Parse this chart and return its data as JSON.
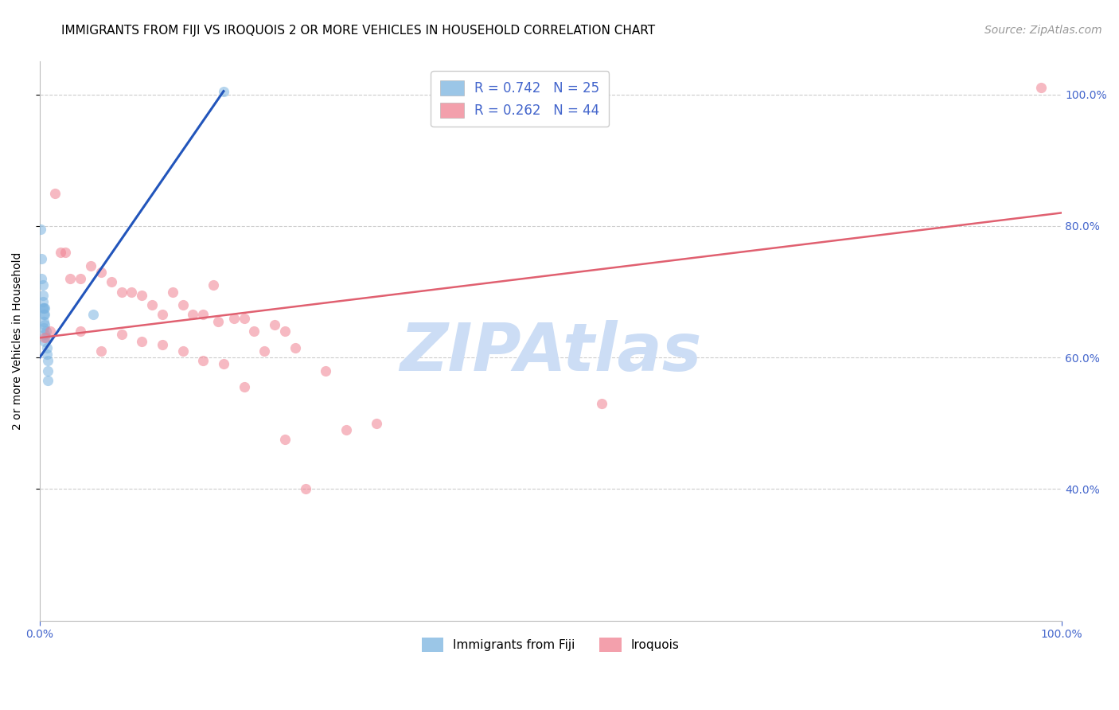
{
  "title": "IMMIGRANTS FROM FIJI VS IROQUOIS 2 OR MORE VEHICLES IN HOUSEHOLD CORRELATION CHART",
  "source": "Source: ZipAtlas.com",
  "ylabel_left": "2 or more Vehicles in Household",
  "x_tick_labels": [
    "0.0%",
    "100.0%"
  ],
  "y_tick_labels_right": [
    "40.0%",
    "60.0%",
    "80.0%",
    "100.0%"
  ],
  "legend_entries": [
    {
      "label": "R = 0.742   N = 25",
      "color": "#a8c8f0"
    },
    {
      "label": "R = 0.262   N = 44",
      "color": "#f0a0b0"
    }
  ],
  "fiji_scatter_x": [
    0.001,
    0.002,
    0.002,
    0.003,
    0.003,
    0.003,
    0.003,
    0.004,
    0.004,
    0.004,
    0.004,
    0.005,
    0.005,
    0.005,
    0.005,
    0.005,
    0.006,
    0.006,
    0.007,
    0.007,
    0.008,
    0.008,
    0.008,
    0.052,
    0.18
  ],
  "fiji_scatter_y": [
    0.795,
    0.72,
    0.75,
    0.71,
    0.695,
    0.685,
    0.675,
    0.675,
    0.665,
    0.655,
    0.645,
    0.675,
    0.665,
    0.65,
    0.635,
    0.625,
    0.64,
    0.63,
    0.615,
    0.605,
    0.595,
    0.58,
    0.565,
    0.665,
    1.005
  ],
  "iroquois_scatter_x": [
    0.005,
    0.01,
    0.015,
    0.02,
    0.025,
    0.03,
    0.04,
    0.05,
    0.06,
    0.07,
    0.08,
    0.09,
    0.1,
    0.11,
    0.12,
    0.13,
    0.14,
    0.15,
    0.16,
    0.17,
    0.175,
    0.19,
    0.2,
    0.21,
    0.23,
    0.24,
    0.25,
    0.28,
    0.3,
    0.33,
    0.04,
    0.06,
    0.08,
    0.1,
    0.12,
    0.14,
    0.16,
    0.18,
    0.2,
    0.22,
    0.24,
    0.26,
    0.55,
    0.98
  ],
  "iroquois_scatter_y": [
    0.63,
    0.64,
    0.85,
    0.76,
    0.76,
    0.72,
    0.72,
    0.74,
    0.73,
    0.715,
    0.7,
    0.7,
    0.695,
    0.68,
    0.665,
    0.7,
    0.68,
    0.665,
    0.665,
    0.71,
    0.655,
    0.66,
    0.66,
    0.64,
    0.65,
    0.64,
    0.615,
    0.58,
    0.49,
    0.5,
    0.64,
    0.61,
    0.635,
    0.625,
    0.62,
    0.61,
    0.595,
    0.59,
    0.555,
    0.61,
    0.475,
    0.4,
    0.53,
    1.01
  ],
  "fiji_line_x": [
    0.0,
    0.18
  ],
  "fiji_line_y": [
    0.6,
    1.005
  ],
  "iroquois_line_x": [
    0.0,
    1.0
  ],
  "iroquois_line_y": [
    0.63,
    0.82
  ],
  "scatter_alpha": 0.55,
  "scatter_size": 90,
  "fiji_color": "#7ab3e0",
  "iroquois_color": "#f08090",
  "fiji_line_color": "#2255bb",
  "iroquois_line_color": "#e06070",
  "title_fontsize": 11,
  "axis_label_fontsize": 10,
  "tick_fontsize": 10,
  "legend_fontsize": 12,
  "source_fontsize": 10,
  "right_tick_color": "#4466cc",
  "bottom_tick_color": "#4466cc",
  "grid_color": "#cccccc",
  "watermark_text": "ZIPAtlas",
  "watermark_color": "#ccddf5",
  "watermark_fontsize": 60,
  "xmin": 0.0,
  "xmax": 1.0,
  "ymin": 0.2,
  "ymax": 1.05,
  "yticks": [
    0.4,
    0.6,
    0.8,
    1.0
  ]
}
